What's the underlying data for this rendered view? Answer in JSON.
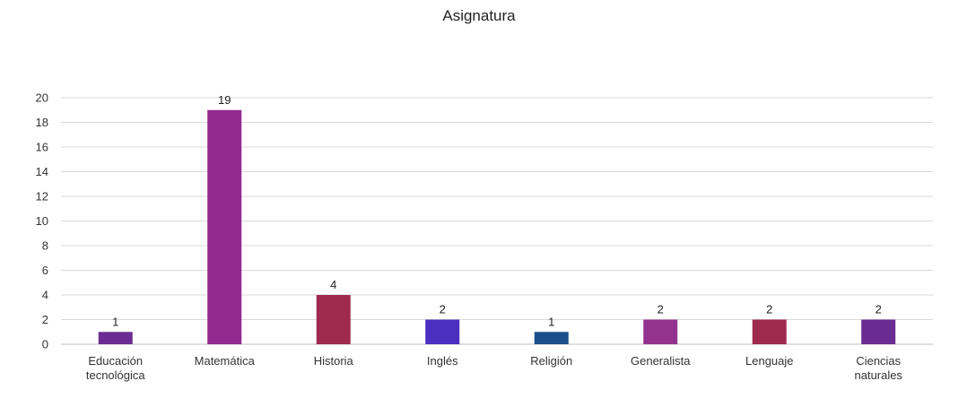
{
  "chart_data": {
    "type": "bar",
    "title": "Asignatura",
    "xlabel": "",
    "ylabel": "",
    "ylim": [
      0,
      20
    ],
    "yticks": [
      0,
      2,
      4,
      6,
      8,
      10,
      12,
      14,
      16,
      18,
      20
    ],
    "grid": true,
    "legend": "none",
    "categories": [
      "Educación tecnológica",
      "Matemática",
      "Historia",
      "Inglés",
      "Religión",
      "Generalista",
      "Lenguaje",
      "Ciencias naturales"
    ],
    "values": [
      1,
      19,
      4,
      2,
      1,
      2,
      2,
      2
    ],
    "colors": [
      "#6a2c91",
      "#91298f",
      "#a0294f",
      "#4a2fc0",
      "#1a4f8c",
      "#93338f",
      "#a0294f",
      "#6a2c91"
    ],
    "gridline_color": "#d9d9d9",
    "axis_color": "#bfbfbf"
  }
}
